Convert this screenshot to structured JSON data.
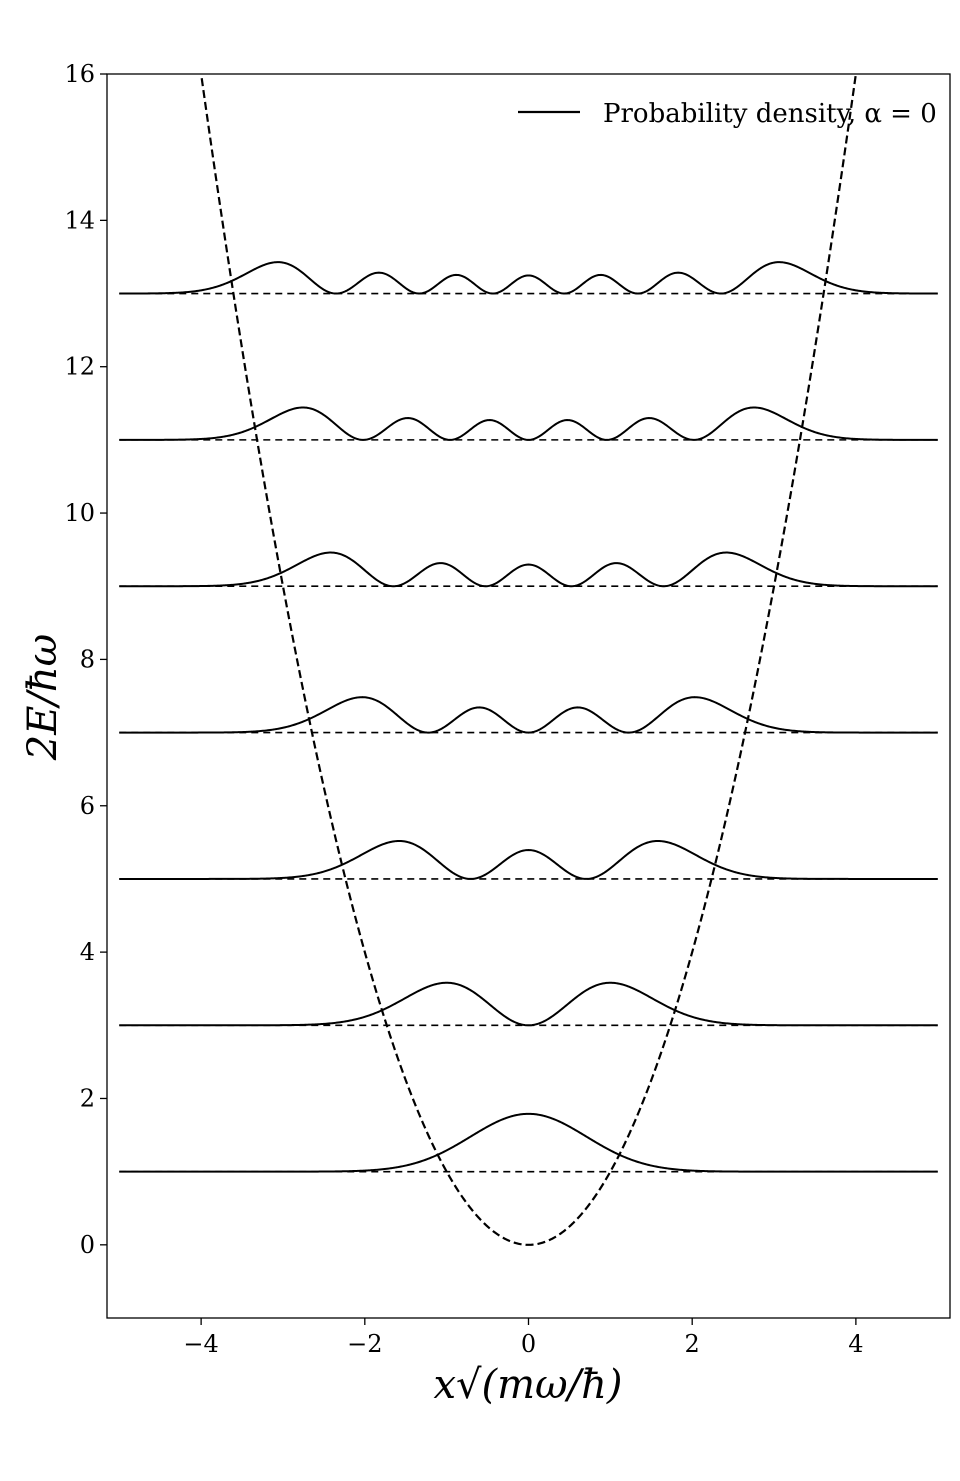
{
  "chart_data": {
    "type": "line",
    "xlabel": "x√(mω/ħ)",
    "ylabel": "2E/ħω",
    "xlim": [
      -5.15,
      5.15
    ],
    "ylim": [
      -1,
      16
    ],
    "xticks": [
      -4,
      -2,
      0,
      2,
      4
    ],
    "yticks": [
      0,
      2,
      4,
      6,
      8,
      10,
      12,
      14,
      16
    ],
    "grid": false,
    "legend": {
      "placement": "top-right",
      "entries": [
        "Probability density, α = 0"
      ]
    },
    "series": [
      {
        "name": "Probability density, α = 0",
        "kind": "probability-density",
        "levels": [
          1,
          3,
          5,
          7,
          9,
          11,
          13
        ],
        "x_range": [
          -5,
          5
        ],
        "scale": 1.4
      },
      {
        "kind": "potential",
        "formula": "y = x^2",
        "x_range": [
          -5.15,
          5.15
        ],
        "style": "dashed"
      },
      {
        "kind": "energy-levels",
        "values": [
          1,
          3,
          5,
          7,
          9,
          11,
          13
        ],
        "x_range": [
          -5,
          5
        ],
        "style": "dashed"
      }
    ]
  }
}
